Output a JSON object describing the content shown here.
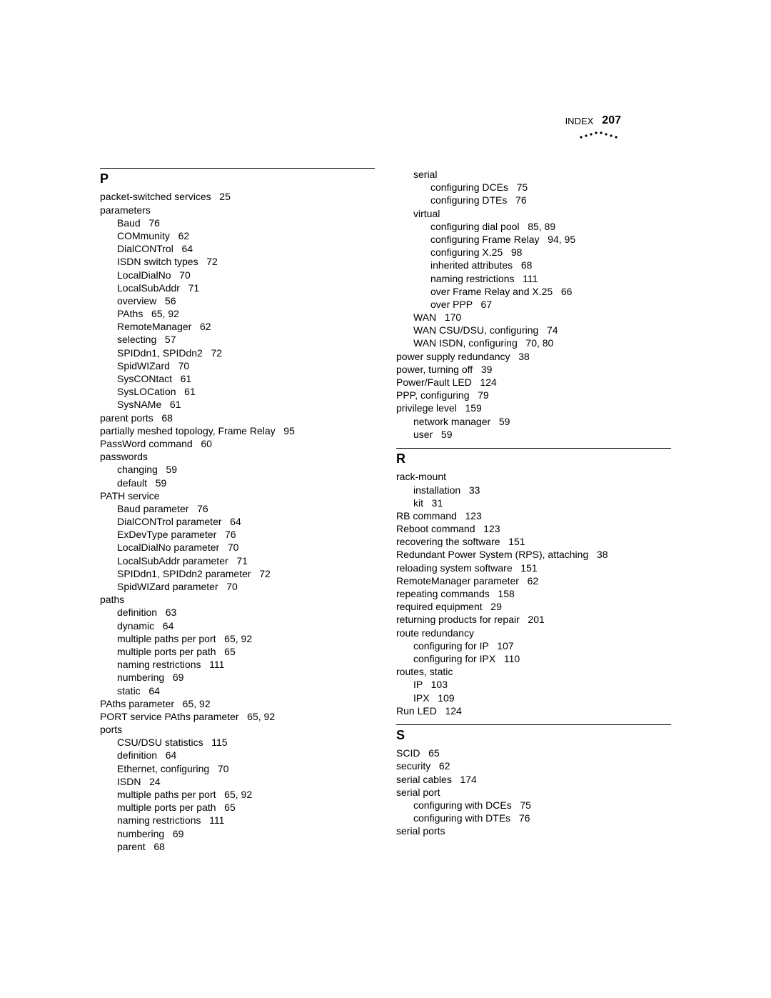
{
  "header": {
    "label": "INDEX",
    "page_number": "207"
  },
  "columns": [
    {
      "sections": [
        {
          "letter": "P",
          "entries": [
            {
              "lvl": 0,
              "text": "packet-switched services   25"
            },
            {
              "lvl": 0,
              "text": "parameters"
            },
            {
              "lvl": 1,
              "text": "Baud   76"
            },
            {
              "lvl": 1,
              "text": "COMmunity   62"
            },
            {
              "lvl": 1,
              "text": "DialCONTrol   64"
            },
            {
              "lvl": 1,
              "text": "ISDN switch types   72"
            },
            {
              "lvl": 1,
              "text": "LocalDialNo   70"
            },
            {
              "lvl": 1,
              "text": "LocalSubAddr   71"
            },
            {
              "lvl": 1,
              "text": "overview   56"
            },
            {
              "lvl": 1,
              "text": "PAths   65, 92"
            },
            {
              "lvl": 1,
              "text": "RemoteManager   62"
            },
            {
              "lvl": 1,
              "text": "selecting   57"
            },
            {
              "lvl": 1,
              "text": "SPIDdn1, SPIDdn2   72"
            },
            {
              "lvl": 1,
              "text": "SpidWIZard   70"
            },
            {
              "lvl": 1,
              "text": "SysCONtact   61"
            },
            {
              "lvl": 1,
              "text": "SysLOCation   61"
            },
            {
              "lvl": 1,
              "text": "SysNAMe   61"
            },
            {
              "lvl": 0,
              "text": "parent ports   68"
            },
            {
              "lvl": 0,
              "text": "partially meshed topology, Frame Relay   95"
            },
            {
              "lvl": 0,
              "text": "PassWord command   60"
            },
            {
              "lvl": 0,
              "text": "passwords"
            },
            {
              "lvl": 1,
              "text": "changing   59"
            },
            {
              "lvl": 1,
              "text": "default   59"
            },
            {
              "lvl": 0,
              "text": "PATH service"
            },
            {
              "lvl": 1,
              "text": "Baud parameter   76"
            },
            {
              "lvl": 1,
              "text": "DialCONTrol parameter   64"
            },
            {
              "lvl": 1,
              "text": "ExDevType parameter   76"
            },
            {
              "lvl": 1,
              "text": "LocalDialNo parameter   70"
            },
            {
              "lvl": 1,
              "text": "LocalSubAddr parameter   71"
            },
            {
              "lvl": 1,
              "text": "SPIDdn1, SPIDdn2 parameter   72"
            },
            {
              "lvl": 1,
              "text": "SpidWIZard parameter   70"
            },
            {
              "lvl": 0,
              "text": "paths"
            },
            {
              "lvl": 1,
              "text": "definition   63"
            },
            {
              "lvl": 1,
              "text": "dynamic   64"
            },
            {
              "lvl": 1,
              "text": "multiple paths per port   65, 92"
            },
            {
              "lvl": 1,
              "text": "multiple ports per path   65"
            },
            {
              "lvl": 1,
              "text": "naming restrictions   111"
            },
            {
              "lvl": 1,
              "text": "numbering   69"
            },
            {
              "lvl": 1,
              "text": "static   64"
            },
            {
              "lvl": 0,
              "text": "PAths parameter   65, 92"
            },
            {
              "lvl": 0,
              "text": "PORT service PAths parameter   65, 92"
            },
            {
              "lvl": 0,
              "text": "ports"
            },
            {
              "lvl": 1,
              "text": "CSU/DSU statistics   115"
            },
            {
              "lvl": 1,
              "text": "definition   64"
            },
            {
              "lvl": 1,
              "text": "Ethernet, configuring   70"
            },
            {
              "lvl": 1,
              "text": "ISDN   24"
            },
            {
              "lvl": 1,
              "text": "multiple paths per port   65, 92"
            },
            {
              "lvl": 1,
              "text": "multiple ports per path   65"
            },
            {
              "lvl": 1,
              "text": "naming restrictions   111"
            },
            {
              "lvl": 1,
              "text": "numbering   69"
            },
            {
              "lvl": 1,
              "text": "parent   68"
            }
          ]
        }
      ]
    },
    {
      "sections": [
        {
          "letter": null,
          "entries": [
            {
              "lvl": 1,
              "text": "serial"
            },
            {
              "lvl": 2,
              "text": "configuring DCEs   75"
            },
            {
              "lvl": 2,
              "text": "configuring DTEs   76"
            },
            {
              "lvl": 1,
              "text": "virtual"
            },
            {
              "lvl": 2,
              "text": "configuring dial pool   85, 89"
            },
            {
              "lvl": 2,
              "text": "configuring Frame Relay   94, 95"
            },
            {
              "lvl": 2,
              "text": "configuring X.25   98"
            },
            {
              "lvl": 2,
              "text": "inherited attributes   68"
            },
            {
              "lvl": 2,
              "text": "naming restrictions   111"
            },
            {
              "lvl": 2,
              "text": "over Frame Relay and X.25   66"
            },
            {
              "lvl": 2,
              "text": "over PPP   67"
            },
            {
              "lvl": 1,
              "text": "WAN   170"
            },
            {
              "lvl": 1,
              "text": "WAN CSU/DSU, configuring   74"
            },
            {
              "lvl": 1,
              "text": "WAN ISDN, configuring   70, 80"
            },
            {
              "lvl": 0,
              "text": "power supply redundancy   38"
            },
            {
              "lvl": 0,
              "text": "power, turning off   39"
            },
            {
              "lvl": 0,
              "text": "Power/Fault LED   124"
            },
            {
              "lvl": 0,
              "text": "PPP, configuring   79"
            },
            {
              "lvl": 0,
              "text": "privilege level   159"
            },
            {
              "lvl": 1,
              "text": "network manager   59"
            },
            {
              "lvl": 1,
              "text": "user   59"
            }
          ]
        },
        {
          "letter": "R",
          "entries": [
            {
              "lvl": 0,
              "text": "rack-mount"
            },
            {
              "lvl": 1,
              "text": "installation   33"
            },
            {
              "lvl": 1,
              "text": "kit   31"
            },
            {
              "lvl": 0,
              "text": "RB command   123"
            },
            {
              "lvl": 0,
              "text": "Reboot command   123"
            },
            {
              "lvl": 0,
              "text": "recovering the software   151"
            },
            {
              "lvl": 0,
              "text": "Redundant Power System (RPS), attaching   38"
            },
            {
              "lvl": 0,
              "text": "reloading system software   151"
            },
            {
              "lvl": 0,
              "text": "RemoteManager parameter   62"
            },
            {
              "lvl": 0,
              "text": "repeating commands   158"
            },
            {
              "lvl": 0,
              "text": "required equipment   29"
            },
            {
              "lvl": 0,
              "text": "returning products for repair   201"
            },
            {
              "lvl": 0,
              "text": "route redundancy"
            },
            {
              "lvl": 1,
              "text": "configuring for IP   107"
            },
            {
              "lvl": 1,
              "text": "configuring for IPX   110"
            },
            {
              "lvl": 0,
              "text": "routes, static"
            },
            {
              "lvl": 1,
              "text": "IP   103"
            },
            {
              "lvl": 1,
              "text": "IPX   109"
            },
            {
              "lvl": 0,
              "text": "Run LED   124"
            }
          ]
        },
        {
          "letter": "S",
          "entries": [
            {
              "lvl": 0,
              "text": "SCID   65"
            },
            {
              "lvl": 0,
              "text": "security   62"
            },
            {
              "lvl": 0,
              "text": "serial cables   174"
            },
            {
              "lvl": 0,
              "text": "serial port"
            },
            {
              "lvl": 1,
              "text": "configuring with DCEs   75"
            },
            {
              "lvl": 1,
              "text": "configuring with DTEs   76"
            },
            {
              "lvl": 0,
              "text": "serial ports"
            }
          ]
        }
      ]
    }
  ]
}
